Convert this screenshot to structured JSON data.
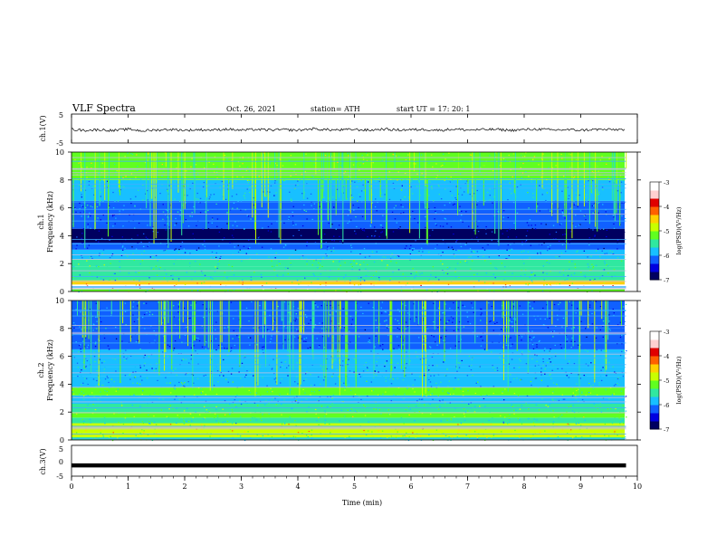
{
  "header": {
    "title": "VLF  Spectra",
    "date": "Oct. 26, 2021",
    "station": "station= ATH",
    "start": "start  UT  =    17: 20: 1"
  },
  "colorbar": {
    "label": "log(PSD)(V²/Hz)",
    "ticks": [
      "-3",
      "-4",
      "-5",
      "-6",
      "-7"
    ],
    "range": [
      -7,
      -3
    ],
    "colormap": [
      "#000060",
      "#0000e0",
      "#1060ff",
      "#18c0ff",
      "#30e8a0",
      "#60ff20",
      "#c8ff00",
      "#ffd000",
      "#ff6000",
      "#e00000",
      "#ffd0d0",
      "#ffffff"
    ]
  },
  "chart_data": [
    {
      "type": "line",
      "panel": "ch1-waveform",
      "title": "",
      "xlabel": "",
      "ylabel": "ch.1(V)",
      "yticks": [
        "5",
        "-5"
      ],
      "ylim": [
        -5,
        5
      ],
      "xlim": [
        0,
        10
      ],
      "series": [
        {
          "x": [
            0,
            0.25,
            0.5,
            0.75,
            1.0,
            1.25,
            1.5,
            1.75,
            2.0,
            2.25,
            2.5,
            2.75,
            3.0,
            3.25,
            3.5,
            3.75,
            4.0,
            4.25,
            4.5,
            4.75,
            5.0,
            5.25,
            5.5,
            5.75,
            6.0,
            6.25,
            6.5,
            6.75,
            7.0,
            7.25,
            7.5,
            7.75,
            8.0,
            8.25,
            8.5,
            8.75,
            9.0,
            9.25,
            9.5,
            9.8
          ],
          "values": [
            -0.3,
            -0.6,
            -0.4,
            -0.7,
            -0.2,
            -0.8,
            -0.5,
            -0.3,
            -0.6,
            -0.4,
            -0.5,
            -0.2,
            -0.6,
            -0.3,
            -0.5,
            -0.4,
            -0.6,
            -0.1,
            -0.4,
            -0.5,
            -0.3,
            -0.6,
            -0.2,
            -0.5,
            -0.4,
            -0.3,
            -0.6,
            -0.2,
            -0.5,
            -0.4,
            -0.3,
            -0.6,
            -0.4,
            -0.2,
            -0.5,
            -0.4,
            -0.6,
            -0.3,
            -0.4,
            -0.3
          ]
        }
      ]
    },
    {
      "type": "heatmap",
      "panel": "ch1-spectrogram",
      "ylabel": "ch.1\nFrequency (kHz)",
      "yticks": [
        "0",
        "2",
        "4",
        "6",
        "8",
        "10"
      ],
      "ylim": [
        0,
        10
      ],
      "xlim": [
        0,
        10
      ],
      "bands_khz": [
        {
          "f0": 0.0,
          "f1": 0.2,
          "level": 4.5
        },
        {
          "f0": 0.2,
          "f1": 0.5,
          "level": 10.5
        },
        {
          "f0": 0.5,
          "f1": 0.8,
          "level": 6.5
        },
        {
          "f0": 0.8,
          "f1": 1.3,
          "level": 3.5
        },
        {
          "f0": 1.3,
          "f1": 1.8,
          "level": 3.8
        },
        {
          "f0": 1.8,
          "f1": 2.3,
          "level": 4.2
        },
        {
          "f0": 2.3,
          "f1": 3.0,
          "level": 2.8
        },
        {
          "f0": 3.0,
          "f1": 3.5,
          "level": 1.8
        },
        {
          "f0": 3.5,
          "f1": 4.5,
          "level": 0.3
        },
        {
          "f0": 4.5,
          "f1": 5.0,
          "level": 1.8
        },
        {
          "f0": 5.0,
          "f1": 6.5,
          "level": 2.2
        },
        {
          "f0": 6.5,
          "f1": 8.0,
          "level": 3.0
        },
        {
          "f0": 8.0,
          "f1": 10.0,
          "level": 5.2
        }
      ]
    },
    {
      "type": "heatmap",
      "panel": "ch2-spectrogram",
      "ylabel": "ch.2\nFrequency (kHz)",
      "yticks": [
        "0",
        "2",
        "4",
        "6",
        "8",
        "10"
      ],
      "ylim": [
        0,
        10
      ],
      "xlim": [
        0,
        10
      ],
      "bands_khz": [
        {
          "f0": 0.0,
          "f1": 0.2,
          "level": 4.0
        },
        {
          "f0": 0.2,
          "f1": 0.5,
          "level": 5.5
        },
        {
          "f0": 0.5,
          "f1": 1.2,
          "level": 6.2
        },
        {
          "f0": 1.2,
          "f1": 1.6,
          "level": 3.8
        },
        {
          "f0": 1.6,
          "f1": 2.0,
          "level": 5.2
        },
        {
          "f0": 2.0,
          "f1": 2.6,
          "level": 4.2
        },
        {
          "f0": 2.6,
          "f1": 3.2,
          "level": 3.0
        },
        {
          "f0": 3.2,
          "f1": 3.8,
          "level": 4.8
        },
        {
          "f0": 3.8,
          "f1": 4.6,
          "level": 3.2
        },
        {
          "f0": 4.6,
          "f1": 5.2,
          "level": 2.6
        },
        {
          "f0": 5.2,
          "f1": 6.5,
          "level": 2.8
        },
        {
          "f0": 6.5,
          "f1": 8.0,
          "level": 2.0
        },
        {
          "f0": 8.0,
          "f1": 10.0,
          "level": 2.2
        }
      ]
    },
    {
      "type": "line",
      "panel": "ch3-waveform",
      "ylabel": "ch.3(V)",
      "yticks": [
        "5",
        "0",
        "-5"
      ],
      "ylim": [
        -5,
        5
      ],
      "xlim": [
        0,
        10
      ],
      "xlabel": "Time  (min)",
      "xticks": [
        "0",
        "1",
        "2",
        "3",
        "4",
        "5",
        "6",
        "7",
        "8",
        "9",
        "10"
      ],
      "series": [
        {
          "x": [
            0,
            9.8
          ],
          "values": [
            -1.5,
            -1.5
          ]
        }
      ]
    }
  ]
}
